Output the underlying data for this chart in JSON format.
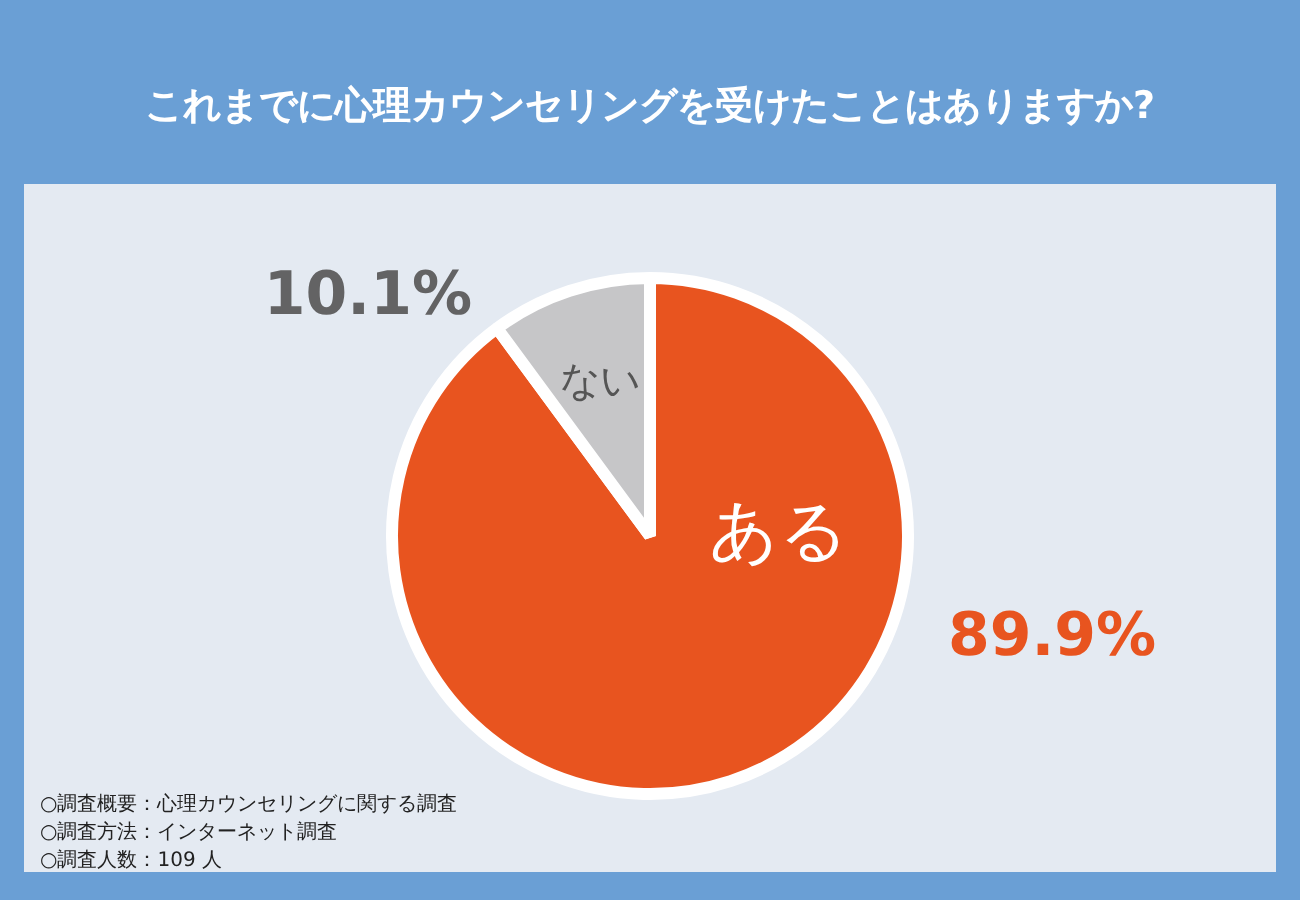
{
  "chart_data": {
    "type": "pie",
    "title": "これまでに心理カウンセリングを受けたことはありますか?",
    "categories": [
      "ある",
      "ない"
    ],
    "values": [
      89.9,
      10.1
    ],
    "value_labels": [
      "89.9%",
      "10.1%"
    ],
    "colors": [
      "#e8541f",
      "#c6c6c8"
    ],
    "annotations": [
      "○調査概要：心理カウンセリングに関する調査",
      "○調査方法：インターネット調査",
      "○調査人数：109 人"
    ],
    "legend": false
  }
}
